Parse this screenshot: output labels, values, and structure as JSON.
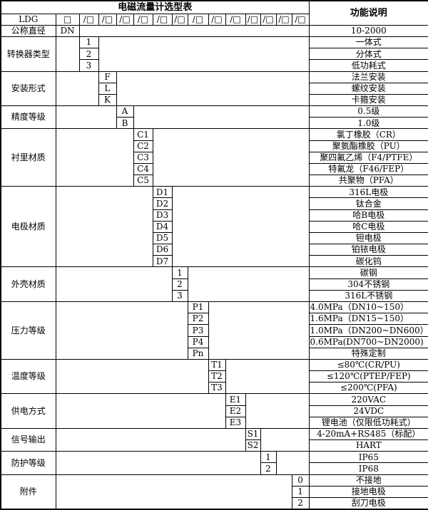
{
  "header": {
    "title": "电磁流量计选型表",
    "function_header": "功能说明",
    "model_prefix": "LDG",
    "dn_slot": "□",
    "code_slots": [
      "/□",
      "/□",
      "/□",
      "/□",
      "/□",
      "/□",
      "/□",
      "/□",
      "/□",
      "/□",
      "/□",
      "/□",
      "/□"
    ]
  },
  "dn_row": {
    "label": "公称直径",
    "code": "DN",
    "function": "10-2000"
  },
  "groups": [
    {
      "label": "转换器类型",
      "col": 0,
      "codes": [
        "1",
        "2",
        "3"
      ],
      "functions": [
        "一体式",
        "分体式",
        "低功耗式"
      ]
    },
    {
      "label": "安装形式",
      "col": 1,
      "codes": [
        "F",
        "L",
        "K"
      ],
      "functions": [
        "法兰安装",
        "螺纹安装",
        "卡箍安装"
      ]
    },
    {
      "label": "精度等级",
      "col": 2,
      "codes": [
        "A",
        "B"
      ],
      "functions": [
        "0.5级",
        "1.0级"
      ]
    },
    {
      "label": "衬里材质",
      "col": 3,
      "codes": [
        "C1",
        "C2",
        "C3",
        "C4",
        "C5"
      ],
      "functions": [
        "氯丁橡胶（CR）",
        "聚氨酯橡胶（PU）",
        "聚四氟乙烯（F4/PTFE）",
        "特氟龙（F46/FEP）",
        "共聚物（PFA）"
      ]
    },
    {
      "label": "电极材质",
      "col": 4,
      "codes": [
        "D1",
        "D2",
        "D3",
        "D4",
        "D5",
        "D6",
        "D7"
      ],
      "functions": [
        "316L电极",
        "钛合金",
        "哈B电极",
        "哈C电极",
        "钽电极",
        "铂铱电极",
        "碳化钨"
      ]
    },
    {
      "label": "外壳材质",
      "col": 5,
      "codes": [
        "1",
        "2",
        "3"
      ],
      "functions": [
        "碳钢",
        "304不锈钢",
        "316L不锈钢"
      ]
    },
    {
      "label": "压力等级",
      "col": 6,
      "codes": [
        "P1",
        "P2",
        "P3",
        "P4",
        "Pn"
      ],
      "functions": [
        "4.0MPa（DN10~150）",
        "1.6MPa（DN15~150）",
        "1.0MPa（DN200~DN600）",
        "0.6MPa(DN700~DN2000)",
        "特殊定制"
      ],
      "func_align": [
        "left",
        "left",
        "left",
        "left",
        "center"
      ]
    },
    {
      "label": "温度等级",
      "col": 7,
      "codes": [
        "T1",
        "T2",
        "T3"
      ],
      "functions": [
        "≤80℃(CR/PU)",
        "≤120℃(PTEP/FEP)",
        "≤200℃(PFA)"
      ]
    },
    {
      "label": "供电方式",
      "col": 8,
      "codes": [
        "E1",
        "E2",
        "E3"
      ],
      "functions": [
        "220VAC",
        "24VDC",
        "锂电池（仅限低功耗式）"
      ]
    },
    {
      "label": "信号输出",
      "col": 9,
      "codes": [
        "S1",
        "S2"
      ],
      "functions": [
        "4-20mA+RS485（标配）",
        "HART"
      ]
    },
    {
      "label": "防护等级",
      "col": 10,
      "codes": [
        "1",
        "2"
      ],
      "functions": [
        "IP65",
        "IP68"
      ]
    },
    {
      "label": "附件",
      "col": 12,
      "codes": [
        "0",
        "1",
        "2"
      ],
      "functions": [
        "不接地",
        "接地电极",
        "刮刀电极"
      ]
    }
  ],
  "colors": {
    "border": "#000000",
    "background": "#ffffff",
    "text": "#000000"
  }
}
